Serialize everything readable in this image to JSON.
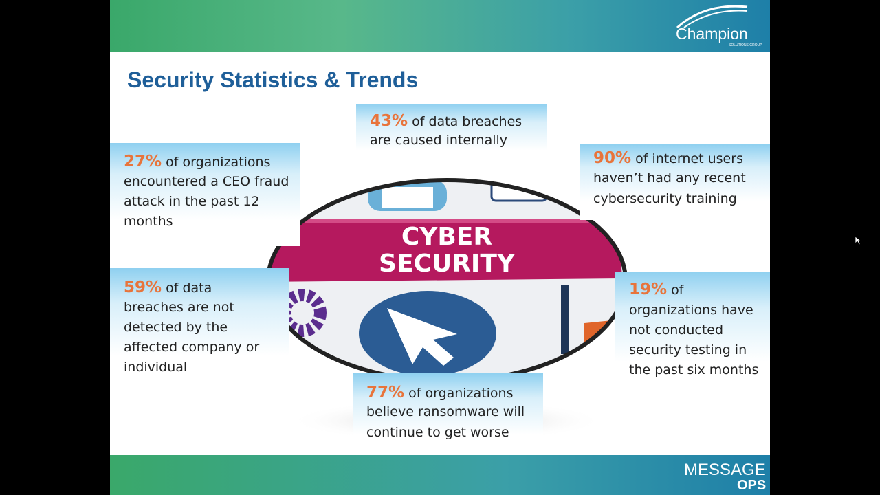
{
  "header": {
    "title": "Security Statistics & Trends"
  },
  "brand": {
    "name": "Champion",
    "tagline": "SOLUTIONS GROUP"
  },
  "graphic": {
    "line1": "CYBER",
    "line2": "SECURITY"
  },
  "stats": [
    {
      "percent": "43%",
      "lines": [
        "of data breaches",
        "are caused internally"
      ]
    },
    {
      "percent": "27%",
      "lines": [
        "of organizations",
        "encountered a CEO fraud",
        "attack in the past 12",
        "months"
      ]
    },
    {
      "percent": "90%",
      "lines": [
        "of internet users",
        "haven’t had any recent",
        "cybersecurity training"
      ]
    },
    {
      "percent": "59%",
      "lines": [
        "of data",
        "breaches are not",
        "detected by the",
        "affected company or",
        "individual"
      ]
    },
    {
      "percent": "19%",
      "lines": [
        "of",
        "organizations have",
        "not conducted",
        "security testing in",
        "the past six months"
      ]
    },
    {
      "percent": "77%",
      "lines": [
        "of organizations",
        "believe ransomware will",
        "continue to get worse"
      ]
    }
  ],
  "footer": {
    "brand1": "MESSAGE",
    "brand2": "OPS"
  }
}
